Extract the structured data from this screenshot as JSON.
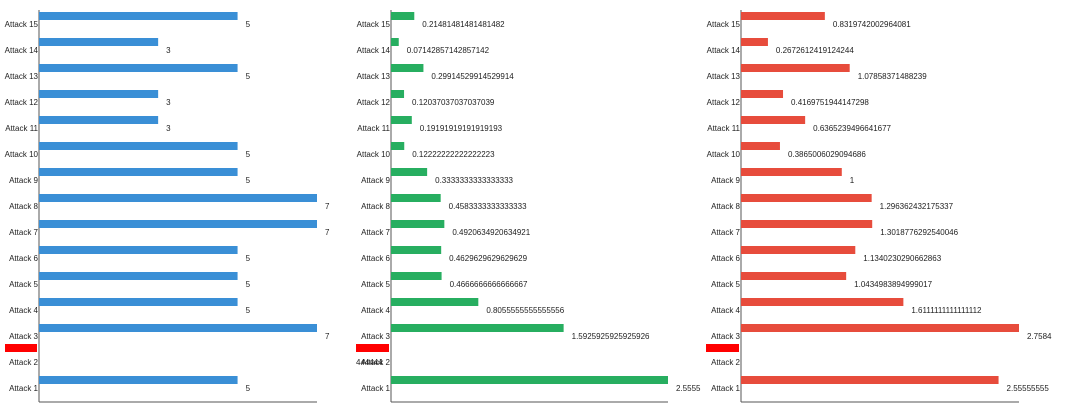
{
  "chart_data": [
    {
      "type": "bar",
      "orientation": "horizontal",
      "color": "#3a8fd6",
      "categories": [
        "Attack 15",
        "Attack 14",
        "Attack 13",
        "Attack 12",
        "Attack 11",
        "Attack 10",
        "Attack 9",
        "Attack 8",
        "Attack 7",
        "Attack 6",
        "Attack 5",
        "Attack 4",
        "Attack 3",
        "Attack 2",
        "Attack 1"
      ],
      "values": [
        5,
        3,
        5,
        3,
        3,
        5,
        5,
        7,
        7,
        5,
        5,
        5,
        7,
        null,
        5
      ],
      "value_labels": [
        "5",
        "3",
        "5",
        "3",
        "3",
        "5",
        "5",
        "7",
        "7",
        "5",
        "5",
        "5",
        "7",
        "",
        "5"
      ],
      "xlim": [
        0,
        7
      ],
      "highlight": {
        "category": "Attack 2",
        "color": "#ff0000",
        "label": ""
      }
    },
    {
      "type": "bar",
      "orientation": "horizontal",
      "color": "#27ae60",
      "categories": [
        "Attack 15",
        "Attack 14",
        "Attack 13",
        "Attack 12",
        "Attack 11",
        "Attack 10",
        "Attack 9",
        "Attack 8",
        "Attack 7",
        "Attack 6",
        "Attack 5",
        "Attack 4",
        "Attack 3",
        "Attack 2",
        "Attack 1"
      ],
      "values": [
        0.21481481481481482,
        0.07142857142857142,
        0.29914529914529914,
        0.12037037037037039,
        0.19191919191919193,
        0.12222222222222223,
        0.3333333333333333,
        0.4583333333333333,
        0.4920634920634921,
        0.4629629629629629,
        0.4666666666666667,
        0.8055555555555556,
        1.5925925925925926,
        null,
        2.5555
      ],
      "value_labels": [
        "0.21481481481481482",
        "0.07142857142857142",
        "0.29914529914529914",
        "0.12037037037037039",
        "0.19191919191919193",
        "0.12222222222222223",
        "0.3333333333333333",
        "0.4583333333333333",
        "0.4920634920634921",
        "0.4629629629629629",
        "0.4666666666666667",
        "0.8055555555555556",
        "1.5925925925925926",
        "",
        "2.5555"
      ],
      "xlim": [
        0,
        2.5555
      ],
      "highlight": {
        "category": "Attack 2",
        "color": "#ff0000",
        "label": "444444"
      }
    },
    {
      "type": "bar",
      "orientation": "horizontal",
      "color": "#e74c3c",
      "categories": [
        "Attack 15",
        "Attack 14",
        "Attack 13",
        "Attack 12",
        "Attack 11",
        "Attack 10",
        "Attack 9",
        "Attack 8",
        "Attack 7",
        "Attack 6",
        "Attack 5",
        "Attack 4",
        "Attack 3",
        "Attack 2",
        "Attack 1"
      ],
      "values": [
        0.8319742002964081,
        0.2672612419124244,
        1.07858371488239,
        0.4169751944147298,
        0.6365239496641677,
        0.3865006029094686,
        1,
        1.296362432175337,
        1.3018776292540046,
        1.1340230290662863,
        1.0434983894999017,
        1.6111111111111112,
        2.7584,
        null,
        2.55555555
      ],
      "value_labels": [
        "0.8319742002964081",
        "0.2672612419124244",
        "1.07858371488239",
        "0.4169751944147298",
        "0.6365239496641677",
        "0.3865006029094686",
        "1",
        "1.296362432175337",
        "1.3018776292540046",
        "1.1340230290662863",
        "1.0434983894999017",
        "1.6111111111111112",
        "2.7584",
        "",
        "2.55555555"
      ],
      "xlim": [
        0,
        2.7584
      ],
      "highlight": {
        "category": "Attack 2",
        "color": "#ff0000",
        "label": ""
      }
    }
  ]
}
